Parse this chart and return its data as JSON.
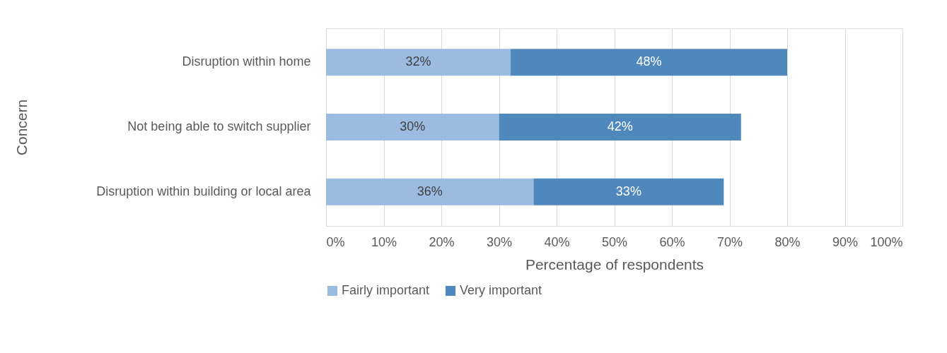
{
  "chart_data": {
    "type": "bar",
    "orientation": "horizontal",
    "stacked": true,
    "xlabel": "Percentage of respondents",
    "ylabel": "Concern",
    "categories": [
      "Disruption within home",
      "Not being able to switch supplier",
      "Disruption within building or local area"
    ],
    "series": [
      {
        "name": "Fairly important",
        "color": "#9bbbe0",
        "values": [
          32,
          30,
          36
        ],
        "value_labels": [
          "32%",
          "30%",
          "36%"
        ]
      },
      {
        "name": "Very important",
        "color": "#4f88bd",
        "values": [
          48,
          42,
          33
        ],
        "value_labels": [
          "48%",
          "42%",
          "33%"
        ]
      }
    ],
    "xlim": [
      0,
      100
    ],
    "xticks": [
      {
        "value": 0,
        "label": "0%"
      },
      {
        "value": 10,
        "label": "10%"
      },
      {
        "value": 20,
        "label": "20%"
      },
      {
        "value": 30,
        "label": "30%"
      },
      {
        "value": 40,
        "label": "40%"
      },
      {
        "value": 50,
        "label": "50%"
      },
      {
        "value": 60,
        "label": "60%"
      },
      {
        "value": 70,
        "label": "70%"
      },
      {
        "value": 80,
        "label": "80%"
      },
      {
        "value": 90,
        "label": "90%"
      },
      {
        "value": 100,
        "label": "100%"
      }
    ],
    "grid": "x",
    "legend": "bottom"
  }
}
